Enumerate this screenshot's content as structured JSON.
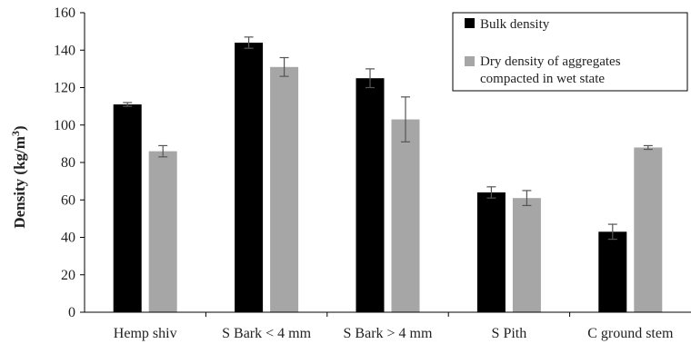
{
  "chart_data": {
    "type": "bar",
    "categories": [
      "Hemp shiv",
      "S Bark < 4 mm",
      "S Bark > 4 mm",
      "S Pith",
      "C ground stem"
    ],
    "series": [
      {
        "name": "Bulk density",
        "color": "#000000",
        "values": [
          111,
          144,
          125,
          64,
          43
        ],
        "errors": [
          1,
          3,
          5,
          3,
          4
        ]
      },
      {
        "name": "Dry density of aggregates compacted in wet state",
        "name_lines": [
          "Dry density of aggregates",
          "compacted in wet state"
        ],
        "color": "#a6a6a6",
        "values": [
          86,
          131,
          103,
          61,
          88
        ],
        "errors": [
          3,
          5,
          12,
          4,
          1
        ]
      }
    ],
    "ylabel": "Density (kg/m³)",
    "ylabel_main": "Density (kg/m",
    "ylabel_sup": "3",
    "ylabel_close": ")",
    "xlabel": "",
    "ylim": [
      0,
      160
    ],
    "yticks": [
      0,
      20,
      40,
      60,
      80,
      100,
      120,
      140,
      160
    ],
    "legend_position": "top-right",
    "grid": false
  }
}
